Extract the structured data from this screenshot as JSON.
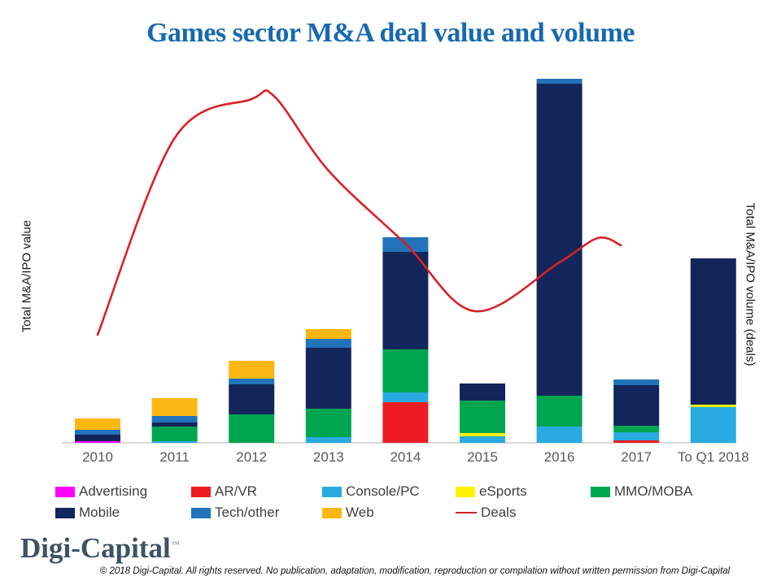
{
  "title": "Games sector M&A deal value and volume",
  "title_color": "#1769b1",
  "y_axis_left_label": "Total M&A/IPO value",
  "y_axis_right_label": "Total M&A/IPO volume (deals)",
  "footer": {
    "logo_text": "Digi-Capital",
    "logo_tm": "™",
    "copyright": "© 2018 Digi-Capital. All rights reserved. No publication, adaptation, modification, reproduction or compilation without written permission from Digi-Capital"
  },
  "legend": {
    "rows": [
      [
        {
          "label": "Advertising",
          "color": "#ff00ff",
          "swatch": "box"
        },
        {
          "label": "AR/VR",
          "color": "#ed1c24",
          "swatch": "box"
        },
        {
          "label": "Console/PC",
          "color": "#29abe2",
          "swatch": "box"
        },
        {
          "label": "eSports",
          "color": "#fff200",
          "swatch": "box"
        },
        {
          "label": "MMO/MOBA",
          "color": "#00a550",
          "swatch": "box"
        }
      ],
      [
        {
          "label": "Mobile",
          "color": "#13265b",
          "swatch": "box"
        },
        {
          "label": "Tech/other",
          "color": "#2273b9",
          "swatch": "box"
        },
        {
          "label": "Web",
          "color": "#fdb713",
          "swatch": "box"
        },
        {
          "label": "Deals",
          "color": "#c9252b",
          "swatch": "line"
        }
      ]
    ]
  },
  "chart_data": {
    "type": "bar",
    "stacked": true,
    "title": "Games sector M&A deal value and volume",
    "xlabel": "",
    "ylabel_left": "Total M&A/IPO value",
    "ylabel_right": "Total M&A/IPO volume (deals)",
    "axis_note": "Both value axes are unlabeled in the source; values below are relative units estimated from bar pixel heights (grid off, no tick values shown).",
    "categories": [
      "2010",
      "2011",
      "2012",
      "2013",
      "2014",
      "2015",
      "2016",
      "2017",
      "To Q1 2018"
    ],
    "series": [
      {
        "name": "Advertising",
        "color": "#ff00ff",
        "values": [
          2,
          0,
          0,
          0,
          0,
          0,
          0,
          0,
          0
        ]
      },
      {
        "name": "AR/VR",
        "color": "#ed1c24",
        "values": [
          0,
          0,
          0,
          0,
          50,
          0,
          0,
          3,
          0
        ]
      },
      {
        "name": "Console/PC",
        "color": "#29abe2",
        "values": [
          0,
          2,
          0,
          7,
          12,
          8,
          20,
          10,
          44
        ]
      },
      {
        "name": "eSports",
        "color": "#fff200",
        "values": [
          0,
          0,
          0,
          0,
          0,
          4,
          0,
          0,
          3
        ]
      },
      {
        "name": "MMO/MOBA",
        "color": "#00a550",
        "values": [
          0,
          18,
          35,
          35,
          53,
          40,
          38,
          8,
          0
        ]
      },
      {
        "name": "Mobile",
        "color": "#13265b",
        "values": [
          8,
          5,
          37,
          75,
          120,
          21,
          384,
          50,
          180
        ]
      },
      {
        "name": "Tech/other",
        "color": "#2273b9",
        "values": [
          6,
          8,
          7,
          11,
          18,
          0,
          6,
          7,
          0
        ]
      },
      {
        "name": "Web",
        "color": "#fdb713",
        "values": [
          14,
          22,
          22,
          12,
          0,
          0,
          0,
          0,
          0
        ]
      }
    ],
    "line_series": {
      "name": "Deals",
      "color": "#d92026",
      "axis": "right",
      "points": [
        {
          "x": 0,
          "v": 133
        },
        {
          "x": 1,
          "v": 375
        },
        {
          "x": 2,
          "v": 423
        },
        {
          "x": 2.3,
          "v": 426
        },
        {
          "x": 3,
          "v": 335
        },
        {
          "x": 4,
          "v": 245
        },
        {
          "x": 4.9,
          "v": 162
        },
        {
          "x": 6,
          "v": 222
        },
        {
          "x": 6.5,
          "v": 252
        },
        {
          "x": 6.8,
          "v": 243
        }
      ]
    },
    "legend_position": "bottom"
  }
}
